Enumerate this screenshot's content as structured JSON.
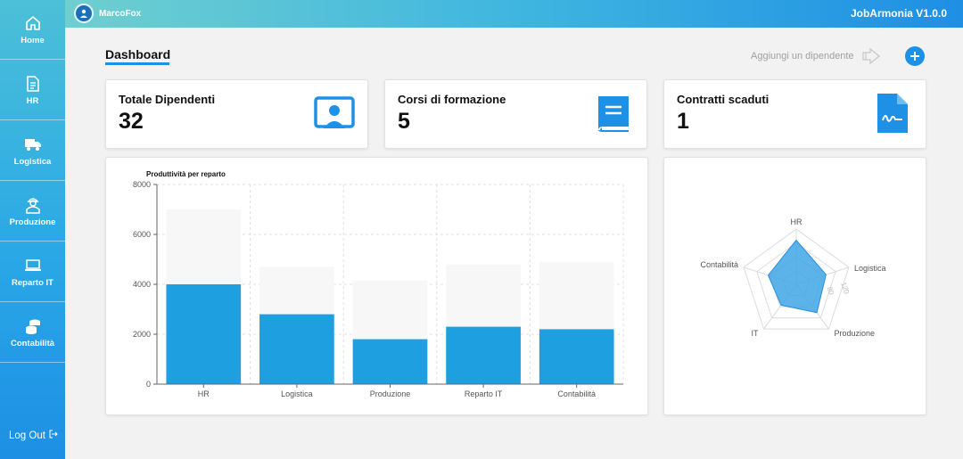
{
  "sidebar": {
    "items": [
      {
        "label": "Home",
        "icon": "home-icon"
      },
      {
        "label": "HR",
        "icon": "document-icon"
      },
      {
        "label": "Logistica",
        "icon": "truck-icon"
      },
      {
        "label": "Produzione",
        "icon": "worker-icon"
      },
      {
        "label": "Reparto IT",
        "icon": "laptop-icon"
      },
      {
        "label": "Contabilità",
        "icon": "coins-icon"
      }
    ],
    "logout_label": "Log Out"
  },
  "topbar": {
    "user_name": "MarcoFox",
    "app_title": "JobArmonia V1.0.0"
  },
  "main": {
    "title": "Dashboard",
    "add_employee_label": "Aggiungi un dipendente"
  },
  "stats": [
    {
      "label": "Totale Dipendenti",
      "value": "32",
      "icon": "employee-monitor-icon"
    },
    {
      "label": "Corsi di formazione",
      "value": "5",
      "icon": "book-icon"
    },
    {
      "label": "Contratti scaduti",
      "value": "1",
      "icon": "contract-icon"
    }
  ],
  "colors": {
    "accent": "#1e90e6",
    "bar": "#1e9fe0",
    "bar_background": "#f7f7f7",
    "radar_fill": "#3ea6e6"
  },
  "chart_data": [
    {
      "type": "bar",
      "title": "Produttività per reparto",
      "categories": [
        "HR",
        "Logistica",
        "Produzione",
        "Reparto IT",
        "Contabilità"
      ],
      "values": [
        4000,
        2800,
        1800,
        2300,
        2200
      ],
      "background_values": [
        7000,
        4700,
        4150,
        4800,
        4900
      ],
      "ylim": [
        0,
        8000
      ],
      "yticks": [
        "0",
        "2000",
        "4000",
        "6000",
        "8000"
      ],
      "grid": true
    },
    {
      "type": "radar",
      "axes": [
        "HR",
        "Logistica",
        "Produzione",
        "IT",
        "Contabilità"
      ],
      "values": [
        120,
        85,
        95,
        70,
        80
      ],
      "rmax": 150,
      "radial_ticks": [
        "80",
        "120"
      ]
    }
  ]
}
